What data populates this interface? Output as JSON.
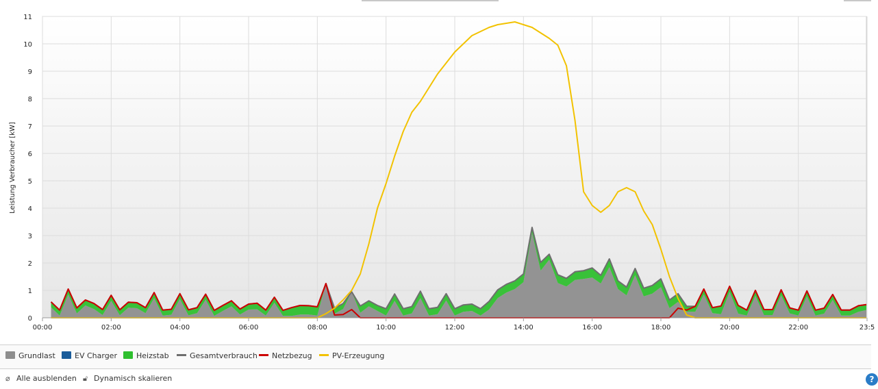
{
  "chart_data": {
    "type": "area",
    "title": "",
    "xlabel": "",
    "ylabel": "Leistung Verbraucher [kW]",
    "ylim": [
      0,
      11
    ],
    "xlim": [
      0,
      23.98
    ],
    "x_ticks": [
      {
        "value": 0,
        "label": "00:00"
      },
      {
        "value": 2,
        "label": "02:00"
      },
      {
        "value": 4,
        "label": "04:00"
      },
      {
        "value": 6,
        "label": "06:00"
      },
      {
        "value": 8,
        "label": "08:00"
      },
      {
        "value": 10,
        "label": "10:00"
      },
      {
        "value": 12,
        "label": "12:00"
      },
      {
        "value": 14,
        "label": "14:00"
      },
      {
        "value": 16,
        "label": "16:00"
      },
      {
        "value": 18,
        "label": "18:00"
      },
      {
        "value": 20,
        "label": "20:00"
      },
      {
        "value": 22,
        "label": "22:00"
      },
      {
        "value": 24,
        "label": "23:5"
      }
    ],
    "y_ticks": [
      0,
      1,
      2,
      3,
      4,
      5,
      6,
      7,
      8,
      9,
      10,
      11
    ],
    "grid": true,
    "legend_position": "bottom",
    "x": [
      0.25,
      0.5,
      0.75,
      1,
      1.25,
      1.5,
      1.75,
      2,
      2.25,
      2.5,
      2.75,
      3,
      3.25,
      3.5,
      3.75,
      4,
      4.25,
      4.5,
      4.75,
      5,
      5.25,
      5.5,
      5.75,
      6,
      6.25,
      6.5,
      6.75,
      7,
      7.25,
      7.5,
      7.75,
      8,
      8.25,
      8.5,
      8.75,
      9,
      9.25,
      9.5,
      9.75,
      10,
      10.25,
      10.5,
      10.75,
      11,
      11.25,
      11.5,
      11.75,
      12,
      12.25,
      12.5,
      12.75,
      13,
      13.25,
      13.5,
      13.75,
      14,
      14.25,
      14.5,
      14.75,
      15,
      15.25,
      15.5,
      15.75,
      16,
      16.25,
      16.5,
      16.75,
      17,
      17.25,
      17.5,
      17.75,
      18,
      18.25,
      18.5,
      18.75,
      19,
      19.25,
      19.5,
      19.75,
      20,
      20.25,
      20.5,
      20.75,
      21,
      21.25,
      21.5,
      21.75,
      22,
      22.25,
      22.5,
      22.75,
      23,
      23.25,
      23.5,
      23.75,
      23.98
    ],
    "series": [
      {
        "name": "Grundlast",
        "color": "#8e8e8e",
        "style": "area",
        "values": [
          0.38,
          0.08,
          0.85,
          0.16,
          0.45,
          0.32,
          0.1,
          0.62,
          0.09,
          0.37,
          0.35,
          0.17,
          0.72,
          0.08,
          0.11,
          0.68,
          0.09,
          0.17,
          0.66,
          0.07,
          0.25,
          0.42,
          0.12,
          0.3,
          0.31,
          0.08,
          0.55,
          0.07,
          0.07,
          0.12,
          0.12,
          0.08,
          1.25,
          0.15,
          0.32,
          0.95,
          0.18,
          0.42,
          0.25,
          0.08,
          0.62,
          0.08,
          0.16,
          0.72,
          0.08,
          0.13,
          0.63,
          0.08,
          0.22,
          0.25,
          0.08,
          0.3,
          0.72,
          0.92,
          1.05,
          1.3,
          3.1,
          1.72,
          2.12,
          1.27,
          1.14,
          1.38,
          1.42,
          1.47,
          1.25,
          1.85,
          1.05,
          0.82,
          1.55,
          0.78,
          0.88,
          1.12,
          0.35,
          0.58,
          0.22,
          0.22,
          0.85,
          0.17,
          0.13,
          0.95,
          0.15,
          0.08,
          0.8,
          0.1,
          0.1,
          0.82,
          0.16,
          0.08,
          0.78,
          0.08,
          0.15,
          0.65,
          0.08,
          0.08,
          0.22,
          0.28
        ]
      },
      {
        "name": "EV Charger",
        "color": "#1a5c9a",
        "style": "area",
        "values": [
          0,
          0,
          0,
          0,
          0,
          0,
          0,
          0,
          0,
          0,
          0,
          0,
          0,
          0,
          0,
          0,
          0,
          0,
          0,
          0,
          0,
          0,
          0,
          0,
          0,
          0,
          0,
          0,
          0,
          0,
          0,
          0,
          0,
          0,
          0,
          0,
          0,
          0,
          0,
          0,
          0,
          0,
          0,
          0,
          0,
          0,
          0,
          0,
          0,
          0,
          0,
          0,
          0,
          0,
          0,
          0,
          0,
          0,
          0,
          0,
          0,
          0,
          0,
          0,
          0,
          0,
          0,
          0,
          0,
          0,
          0,
          0,
          0,
          0,
          0,
          0,
          0,
          0,
          0,
          0,
          0,
          0,
          0,
          0,
          0,
          0,
          0,
          0,
          0,
          0,
          0,
          0,
          0,
          0,
          0,
          0
        ]
      },
      {
        "name": "Heizstab",
        "color": "#2fbf2f",
        "style": "area",
        "values": [
          0.2,
          0.2,
          0.2,
          0.2,
          0.2,
          0.2,
          0.2,
          0.2,
          0.2,
          0.2,
          0.2,
          0.2,
          0.2,
          0.2,
          0.2,
          0.2,
          0.2,
          0.2,
          0.2,
          0.2,
          0.2,
          0.2,
          0.2,
          0.2,
          0.22,
          0.2,
          0.2,
          0.2,
          0.3,
          0.33,
          0.32,
          0.32,
          0,
          0.2,
          0.2,
          0.0,
          0.25,
          0.2,
          0.2,
          0.25,
          0.25,
          0.25,
          0.25,
          0.25,
          0.25,
          0.25,
          0.25,
          0.25,
          0.25,
          0.25,
          0.25,
          0.3,
          0.3,
          0.3,
          0.3,
          0.3,
          0.2,
          0.3,
          0.2,
          0.3,
          0.3,
          0.3,
          0.3,
          0.35,
          0.3,
          0.3,
          0.3,
          0.3,
          0.25,
          0.3,
          0.3,
          0.3,
          0.3,
          0.3,
          0.2,
          0.2,
          0.2,
          0.2,
          0.3,
          0.2,
          0.3,
          0.2,
          0.2,
          0.2,
          0.2,
          0.2,
          0.2,
          0.2,
          0.2,
          0.2,
          0.2,
          0.2,
          0.2,
          0.2,
          0.22,
          0.2
        ]
      },
      {
        "name": "Gesamtverbrauch",
        "color": "#6e6e6e",
        "style": "line",
        "values": [
          0.58,
          0.28,
          1.05,
          0.36,
          0.65,
          0.52,
          0.3,
          0.82,
          0.29,
          0.57,
          0.55,
          0.37,
          0.92,
          0.28,
          0.31,
          0.88,
          0.29,
          0.37,
          0.86,
          0.27,
          0.45,
          0.62,
          0.32,
          0.5,
          0.53,
          0.28,
          0.75,
          0.27,
          0.37,
          0.45,
          0.44,
          0.4,
          1.25,
          0.35,
          0.52,
          0.95,
          0.43,
          0.62,
          0.45,
          0.33,
          0.87,
          0.33,
          0.41,
          0.97,
          0.33,
          0.38,
          0.88,
          0.33,
          0.47,
          0.5,
          0.33,
          0.6,
          1.02,
          1.22,
          1.35,
          1.6,
          3.3,
          2.02,
          2.32,
          1.57,
          1.44,
          1.68,
          1.72,
          1.82,
          1.55,
          2.15,
          1.35,
          1.12,
          1.8,
          1.08,
          1.18,
          1.42,
          0.65,
          0.88,
          0.42,
          0.42,
          1.05,
          0.37,
          0.43,
          1.15,
          0.45,
          0.28,
          1.0,
          0.3,
          0.3,
          1.02,
          0.36,
          0.28,
          0.98,
          0.28,
          0.35,
          0.85,
          0.28,
          0.28,
          0.44,
          0.48
        ]
      },
      {
        "name": "Netzbezug",
        "color": "#cc0000",
        "style": "line",
        "values": [
          0.58,
          0.28,
          1.05,
          0.36,
          0.65,
          0.52,
          0.3,
          0.82,
          0.29,
          0.57,
          0.55,
          0.37,
          0.92,
          0.28,
          0.31,
          0.88,
          0.29,
          0.37,
          0.86,
          0.27,
          0.45,
          0.62,
          0.32,
          0.5,
          0.53,
          0.28,
          0.75,
          0.27,
          0.37,
          0.45,
          0.44,
          0.4,
          1.25,
          0.1,
          0.12,
          0.3,
          0,
          0,
          0,
          0,
          0,
          0,
          0,
          0,
          0,
          0,
          0,
          0,
          0,
          0,
          0,
          0,
          0,
          0,
          0,
          0,
          0,
          0,
          0,
          0,
          0,
          0,
          0,
          0,
          0,
          0,
          0,
          0,
          0,
          0,
          0,
          0,
          0,
          0.35,
          0.28,
          0.42,
          1.05,
          0.37,
          0.43,
          1.15,
          0.45,
          0.28,
          1.0,
          0.3,
          0.3,
          1.02,
          0.36,
          0.28,
          0.98,
          0.28,
          0.35,
          0.85,
          0.28,
          0.28,
          0.44,
          0.48
        ]
      },
      {
        "name": "PV-Erzeugung",
        "color": "#f2c200",
        "style": "line",
        "values": [
          0,
          0,
          0,
          0,
          0,
          0,
          0,
          0,
          0,
          0,
          0,
          0,
          0,
          0,
          0,
          0,
          0,
          0,
          0,
          0,
          0,
          0,
          0,
          0,
          0,
          0,
          0,
          0,
          0,
          0,
          0,
          0,
          0.15,
          0.35,
          0.65,
          1.0,
          1.6,
          2.7,
          4.0,
          4.9,
          5.9,
          6.8,
          7.5,
          7.9,
          8.4,
          8.9,
          9.3,
          9.7,
          10.0,
          10.3,
          10.45,
          10.6,
          10.7,
          10.75,
          10.8,
          10.7,
          10.6,
          10.4,
          10.2,
          9.95,
          9.2,
          7.2,
          4.6,
          4.1,
          3.85,
          4.1,
          4.6,
          4.75,
          4.6,
          3.9,
          3.4,
          2.5,
          1.5,
          0.7,
          0.1,
          0,
          0,
          0,
          0,
          0,
          0,
          0,
          0,
          0,
          0,
          0,
          0,
          0,
          0,
          0,
          0,
          0,
          0,
          0,
          0,
          0
        ]
      }
    ]
  },
  "legend": [
    {
      "label": "Grundlast",
      "color": "#8e8e8e",
      "kind": "box"
    },
    {
      "label": "EV Charger",
      "color": "#1a5c9a",
      "kind": "box"
    },
    {
      "label": "Heizstab",
      "color": "#2fbf2f",
      "kind": "box"
    },
    {
      "label": "Gesamtverbrauch",
      "color": "#6e6e6e",
      "kind": "line"
    },
    {
      "label": "Netzbezug",
      "color": "#cc0000",
      "kind": "line"
    },
    {
      "label": "PV-Erzeugung",
      "color": "#f2c200",
      "kind": "line"
    }
  ],
  "footer": {
    "hide_all_label": "Alle ausblenden",
    "dynamic_scale_label": "Dynamisch skalieren",
    "hide_all_icon": "eye-slash-icon",
    "dynamic_scale_icon": "unlock-icon",
    "help_icon": "help-icon"
  }
}
